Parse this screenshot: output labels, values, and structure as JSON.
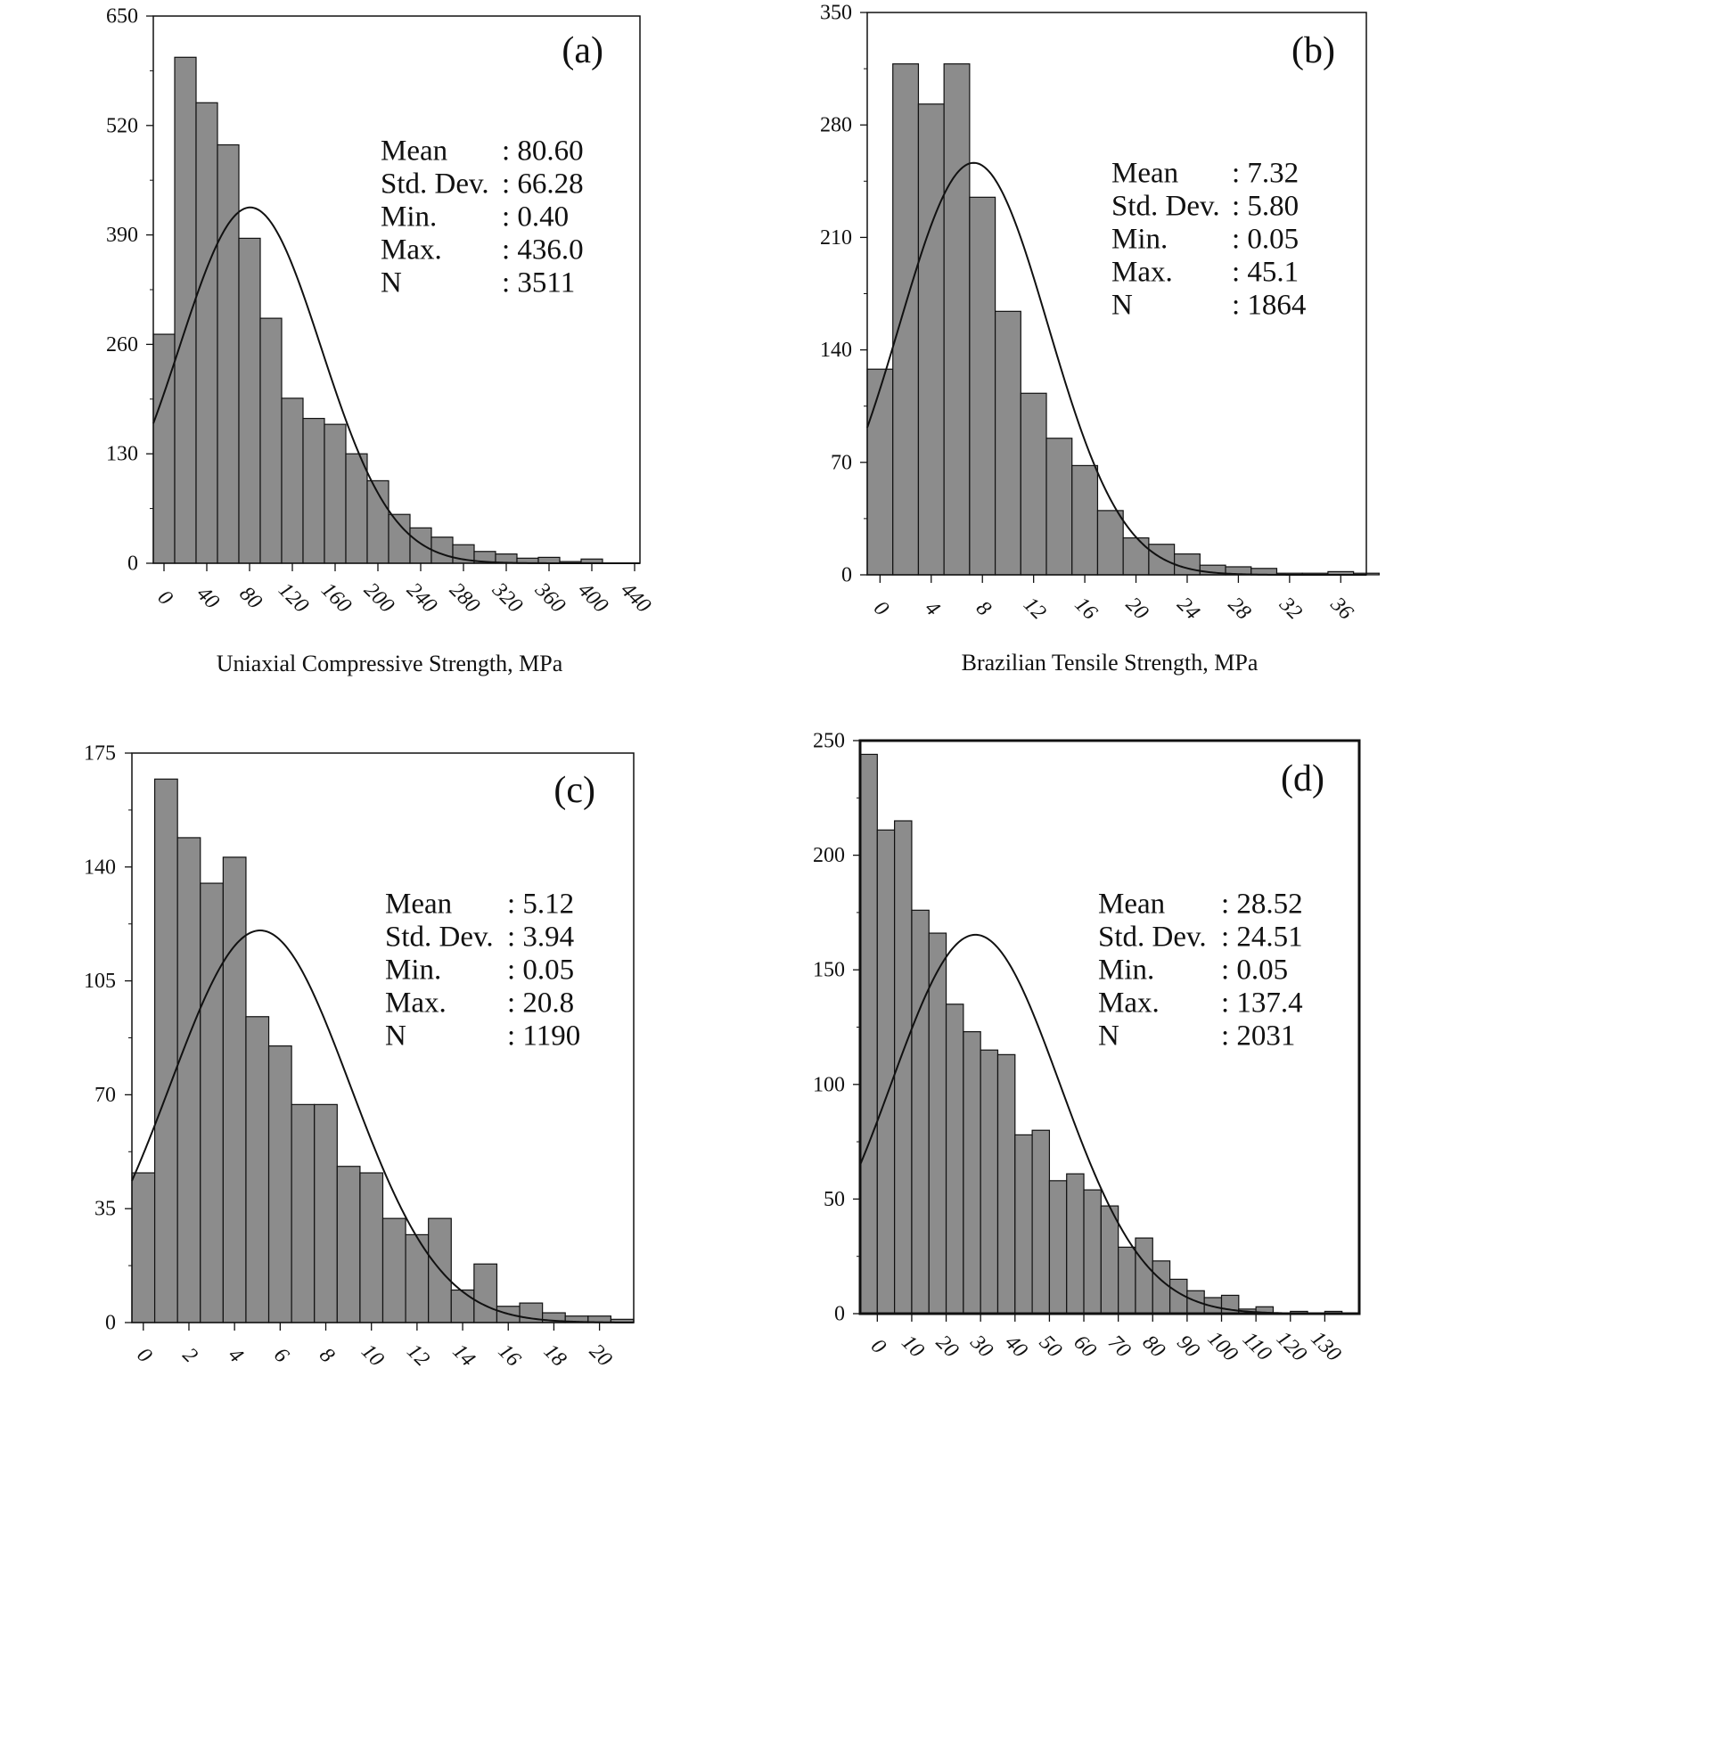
{
  "chart_data": [
    {
      "type": "bar",
      "panel": "(a)",
      "title": "",
      "xlabel": "Uniaxial Compressive Strength, MPa",
      "ylabel": "",
      "ylim": [
        0,
        650
      ],
      "yticks": [
        "0",
        "130",
        "260",
        "390",
        "520",
        "650"
      ],
      "xlim": [
        -10,
        445
      ],
      "xticks": [
        "0",
        "40",
        "80",
        "120",
        "160",
        "200",
        "240",
        "280",
        "320",
        "360",
        "400",
        "440"
      ],
      "bin_start": -10,
      "bin_width": 20,
      "values": [
        272,
        601,
        547,
        497,
        386,
        291,
        196,
        172,
        165,
        130,
        98,
        58,
        42,
        31,
        22,
        14,
        11,
        6,
        7,
        2,
        5,
        0
      ],
      "normal_curve": {
        "mean": 80.6,
        "sd": 66.28,
        "n": 3511
      },
      "stats": [
        {
          "label": "Mean",
          "value": ": 80.60"
        },
        {
          "label": "Std. Dev.",
          "value": ": 66.28"
        },
        {
          "label": "Min.",
          "value": ": 0.40"
        },
        {
          "label": "Max.",
          "value": ": 436.0"
        },
        {
          "label": "N",
          "value": ": 3511"
        }
      ],
      "bar_color": "#8c8c8c"
    },
    {
      "type": "bar",
      "panel": "(b)",
      "title": "",
      "xlabel": "Brazilian Tensile Strength, MPa",
      "ylabel": "",
      "ylim": [
        0,
        350
      ],
      "yticks": [
        "0",
        "70",
        "140",
        "210",
        "280",
        "350"
      ],
      "xlim": [
        -1,
        38
      ],
      "xticks": [
        "0",
        "4",
        "8",
        "12",
        "16",
        "20",
        "24",
        "28",
        "32",
        "36"
      ],
      "bin_start": -1,
      "bin_width": 2,
      "values": [
        128,
        318,
        293,
        318,
        235,
        164,
        113,
        85,
        68,
        40,
        23,
        19,
        13,
        6,
        5,
        4,
        1,
        1,
        2,
        1
      ],
      "normal_curve": {
        "mean": 7.32,
        "sd": 5.8,
        "n": 1864
      },
      "stats": [
        {
          "label": "Mean",
          "value": ": 7.32"
        },
        {
          "label": "Std. Dev.",
          "value": ": 5.80"
        },
        {
          "label": "Min.",
          "value": ": 0.05"
        },
        {
          "label": "Max.",
          "value": ": 45.1"
        },
        {
          "label": "N",
          "value": ": 1864"
        }
      ],
      "bar_color": "#8c8c8c"
    },
    {
      "type": "bar",
      "panel": "(c)",
      "title": "",
      "xlabel": "",
      "ylabel": "",
      "ylim": [
        0,
        175
      ],
      "yticks": [
        "0",
        "35",
        "70",
        "105",
        "140",
        "175"
      ],
      "xlim": [
        -0.5,
        21.5
      ],
      "xticks": [
        "0",
        "2",
        "4",
        "6",
        "8",
        "10",
        "12",
        "14",
        "16",
        "18",
        "20"
      ],
      "bin_start": -0.5,
      "bin_width": 1,
      "values": [
        46,
        167,
        149,
        135,
        143,
        94,
        85,
        67,
        67,
        48,
        46,
        32,
        27,
        32,
        10,
        18,
        5,
        6,
        3,
        2,
        2,
        1
      ],
      "normal_curve": {
        "mean": 5.12,
        "sd": 3.94,
        "n": 1190
      },
      "stats": [
        {
          "label": "Mean",
          "value": ": 5.12"
        },
        {
          "label": "Std. Dev.",
          "value": ": 3.94"
        },
        {
          "label": "Min.",
          "value": ": 0.05"
        },
        {
          "label": "Max.",
          "value": ": 20.8"
        },
        {
          "label": "N",
          "value": ": 1190"
        }
      ],
      "bar_color": "#8c8c8c"
    },
    {
      "type": "bar",
      "panel": "(d)",
      "title": "",
      "xlabel": "",
      "ylabel": "",
      "ylim": [
        0,
        250
      ],
      "yticks": [
        "0",
        "50",
        "100",
        "150",
        "200",
        "250"
      ],
      "xlim": [
        -5,
        140
      ],
      "xticks": [
        "0",
        "10",
        "20",
        "30",
        "40",
        "50",
        "60",
        "70",
        "80",
        "90",
        "100",
        "110",
        "120",
        "130"
      ],
      "bin_start": -5,
      "bin_width": 5,
      "values": [
        244,
        211,
        215,
        176,
        166,
        135,
        123,
        115,
        113,
        78,
        80,
        58,
        61,
        54,
        47,
        29,
        33,
        23,
        15,
        10,
        7,
        8,
        2,
        3,
        0,
        1,
        0,
        1
      ],
      "normal_curve": {
        "mean": 28.52,
        "sd": 24.51,
        "n": 2031
      },
      "stats": [
        {
          "label": "Mean",
          "value": ": 28.52"
        },
        {
          "label": "Std. Dev.",
          "value": ": 24.51"
        },
        {
          "label": "Min.",
          "value": ": 0.05"
        },
        {
          "label": "Max.",
          "value": ": 137.4"
        },
        {
          "label": "N",
          "value": ": 2031"
        }
      ],
      "bar_color": "#8c8c8c"
    }
  ]
}
